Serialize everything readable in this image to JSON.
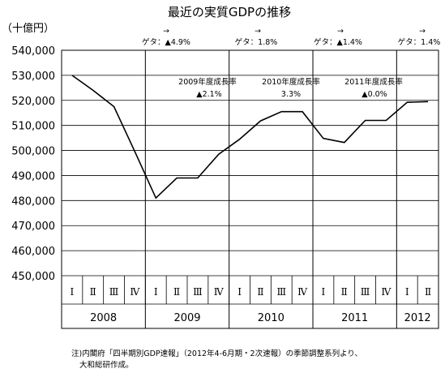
{
  "chart_data": {
    "type": "line",
    "title": "最近の実質GDPの推移",
    "unit_label": "（十億円）",
    "ylim": [
      450000,
      540000
    ],
    "y_ticks": [
      "540,000",
      "530,000",
      "520,000",
      "510,000",
      "500,000",
      "490,000",
      "480,000",
      "470,000",
      "460,000",
      "450,000"
    ],
    "y_tick_values": [
      540000,
      530000,
      520000,
      510000,
      500000,
      490000,
      480000,
      470000,
      460000,
      450000
    ],
    "quarters": [
      "Ⅰ",
      "Ⅱ",
      "Ⅲ",
      "Ⅳ",
      "Ⅰ",
      "Ⅱ",
      "Ⅲ",
      "Ⅳ",
      "Ⅰ",
      "Ⅱ",
      "Ⅲ",
      "Ⅳ",
      "Ⅰ",
      "Ⅱ",
      "Ⅲ",
      "Ⅳ",
      "Ⅰ",
      "Ⅱ"
    ],
    "years": [
      {
        "label": "2008",
        "start": 0,
        "count": 4
      },
      {
        "label": "2009",
        "start": 4,
        "count": 4
      },
      {
        "label": "2010",
        "start": 8,
        "count": 4
      },
      {
        "label": "2011",
        "start": 12,
        "count": 4
      },
      {
        "label": "2012",
        "start": 16,
        "count": 2
      }
    ],
    "values": [
      530000,
      524000,
      517500,
      499500,
      481000,
      489000,
      489000,
      498500,
      504500,
      511800,
      515500,
      515500,
      504800,
      503200,
      512000,
      512000,
      519200,
      519500
    ],
    "annotations": [
      {
        "arrow": "→",
        "text": "ゲタ：▲4.9%"
      },
      {
        "arrow": "→",
        "text": "ゲタ：1.8%"
      },
      {
        "arrow": "→",
        "text": "ゲタ：▲1.4%"
      },
      {
        "arrow": "→",
        "text": "ゲタ：1.4%"
      }
    ],
    "growth_labels": [
      {
        "line1": "2009年度成長率",
        "line2": "▲2.1%"
      },
      {
        "line1": "2010年度成長率",
        "line2": "3.3%"
      },
      {
        "line1": "2011年度成長率",
        "line2": "▲0.0%"
      }
    ],
    "grid": true,
    "line_color": "#000000"
  },
  "note": {
    "line1": "注)内閣府「四半期別GDP速報」（2012年4-6月期・2次速報）の季節調整系列より、",
    "line2": "大和総研作成。"
  }
}
